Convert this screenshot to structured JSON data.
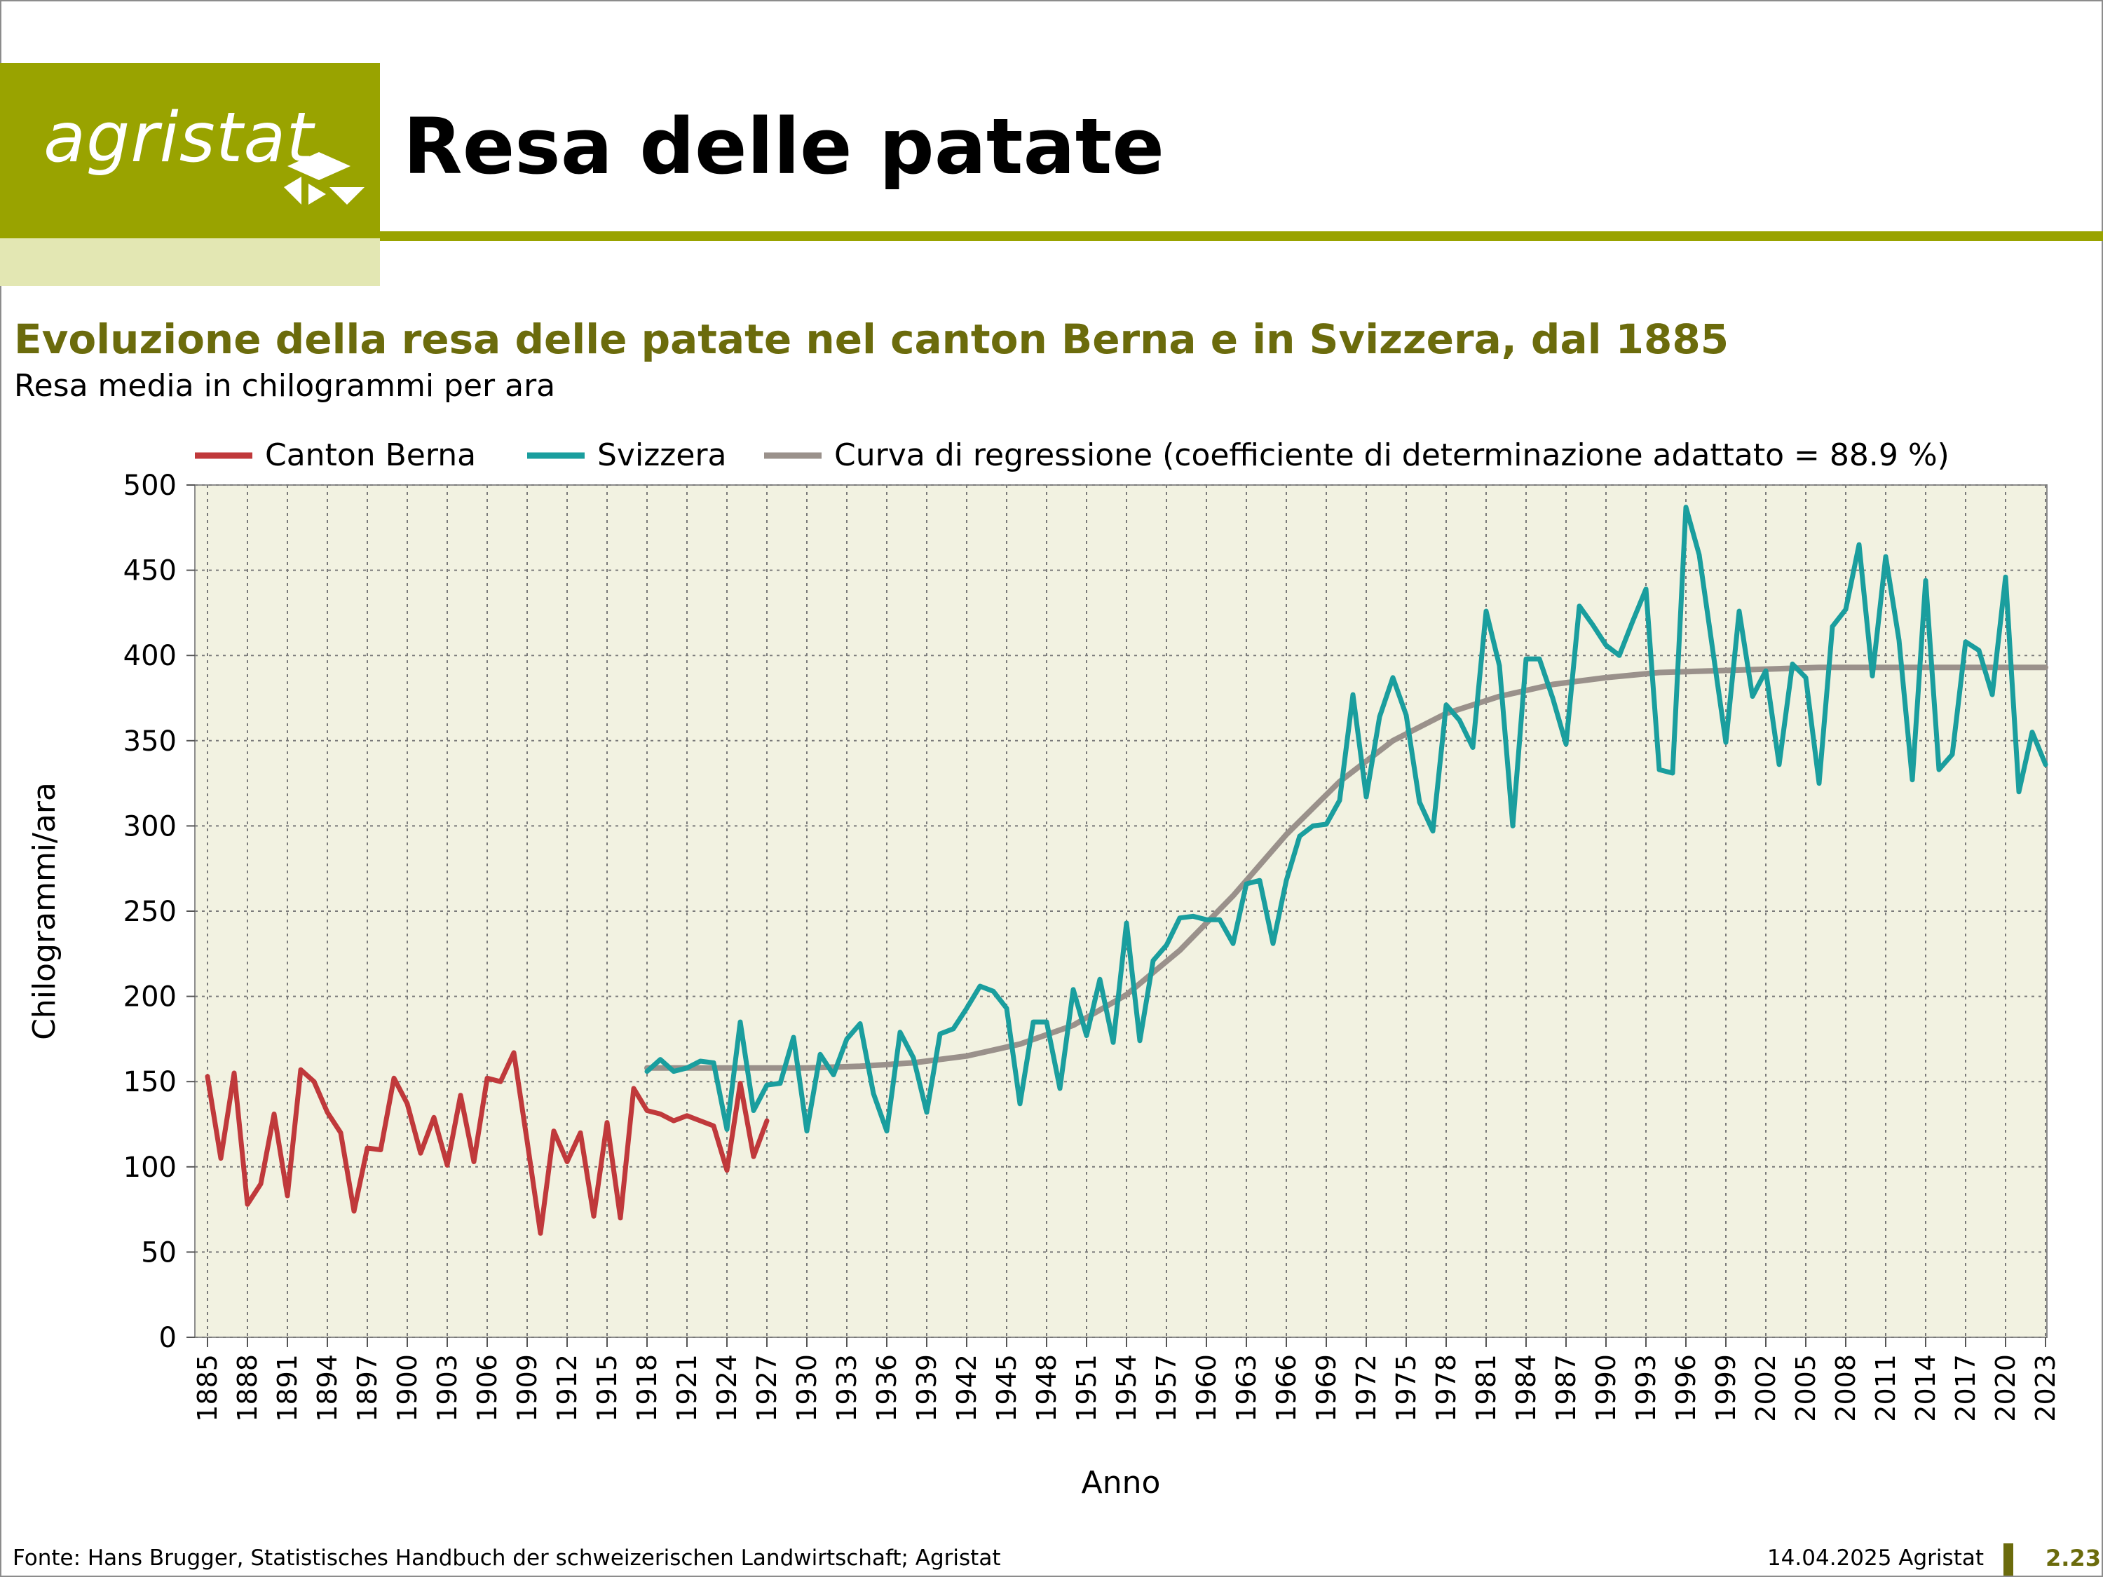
{
  "header": {
    "logo_text": "agristat",
    "title": "Resa delle patate"
  },
  "subtitle": "Evoluzione della resa delle patate nel canton Berna e in Svizzera, dal 1885",
  "subtitle2": "Resa media in chilogrammi per ara",
  "footer": {
    "source": "Fonte: Hans Brugger, Statistisches Handbuch der schweizerischen Landwirtschaft; Agristat",
    "date": "14.04.2025 Agristat",
    "page": "2.23"
  },
  "colors": {
    "accent": "#99a300",
    "accent_light": "#e3e7b3",
    "title_green": "#6b6b0c",
    "plot_bg": "#f2f2e1",
    "berna": "#c0393b",
    "svizzera": "#1a9e9e",
    "regression": "#9a918b"
  },
  "chart_data": {
    "type": "line",
    "xlabel": "Anno",
    "ylabel": "Chilogrammi/ara",
    "xlim": [
      1885,
      2023
    ],
    "ylim": [
      0,
      500
    ],
    "yticks": [
      0,
      50,
      100,
      150,
      200,
      250,
      300,
      350,
      400,
      450,
      500
    ],
    "xticks": [
      1885,
      1888,
      1891,
      1894,
      1897,
      1900,
      1903,
      1906,
      1909,
      1912,
      1915,
      1918,
      1921,
      1924,
      1927,
      1930,
      1933,
      1936,
      1939,
      1942,
      1945,
      1948,
      1951,
      1954,
      1957,
      1960,
      1963,
      1966,
      1969,
      1972,
      1975,
      1978,
      1981,
      1984,
      1987,
      1990,
      1993,
      1996,
      1999,
      2002,
      2005,
      2008,
      2011,
      2014,
      2017,
      2020,
      2023
    ],
    "grid": true,
    "legend": "top",
    "series": [
      {
        "name": "Canton Berna",
        "color": "#c0393b",
        "x": [
          1885,
          1886,
          1887,
          1888,
          1889,
          1890,
          1891,
          1892,
          1893,
          1894,
          1895,
          1896,
          1897,
          1898,
          1899,
          1900,
          1901,
          1902,
          1903,
          1904,
          1905,
          1906,
          1907,
          1908,
          1909,
          1910,
          1911,
          1912,
          1913,
          1914,
          1915,
          1916,
          1917,
          1918,
          1919,
          1920,
          1921,
          1922,
          1923,
          1924,
          1925,
          1926,
          1927
        ],
        "y": [
          153,
          105,
          155,
          78,
          90,
          131,
          83,
          157,
          150,
          132,
          120,
          74,
          111,
          110,
          152,
          137,
          108,
          129,
          101,
          142,
          103,
          152,
          150,
          167,
          115,
          61,
          121,
          103,
          120,
          71,
          126,
          70,
          146,
          133,
          131,
          127,
          130,
          127,
          124,
          98,
          149,
          106,
          127
        ]
      },
      {
        "name": "Svizzera",
        "color": "#1a9e9e",
        "x": [
          1918,
          1919,
          1920,
          1921,
          1922,
          1923,
          1924,
          1925,
          1926,
          1927,
          1928,
          1929,
          1930,
          1931,
          1932,
          1933,
          1934,
          1935,
          1936,
          1937,
          1938,
          1939,
          1940,
          1941,
          1942,
          1943,
          1944,
          1945,
          1946,
          1947,
          1948,
          1949,
          1950,
          1951,
          1952,
          1953,
          1954,
          1955,
          1956,
          1957,
          1958,
          1959,
          1960,
          1961,
          1962,
          1963,
          1964,
          1965,
          1966,
          1967,
          1968,
          1969,
          1970,
          1971,
          1972,
          1973,
          1974,
          1975,
          1976,
          1977,
          1978,
          1979,
          1980,
          1981,
          1982,
          1983,
          1984,
          1985,
          1986,
          1987,
          1988,
          1989,
          1990,
          1991,
          1992,
          1993,
          1994,
          1995,
          1996,
          1997,
          1998,
          1999,
          2000,
          2001,
          2002,
          2003,
          2004,
          2005,
          2006,
          2007,
          2008,
          2009,
          2010,
          2011,
          2012,
          2013,
          2014,
          2015,
          2016,
          2017,
          2018,
          2019,
          2020,
          2021,
          2022,
          2023
        ],
        "y": [
          156,
          163,
          156,
          158,
          162,
          161,
          122,
          185,
          133,
          148,
          149,
          176,
          121,
          166,
          154,
          175,
          184,
          143,
          121,
          179,
          164,
          132,
          178,
          181,
          193,
          206,
          203,
          193,
          137,
          185,
          185,
          146,
          204,
          177,
          210,
          173,
          243,
          174,
          221,
          230,
          246,
          247,
          245,
          245,
          231,
          266,
          268,
          231,
          268,
          294,
          300,
          301,
          315,
          377,
          317,
          364,
          387,
          365,
          314,
          297,
          371,
          362,
          346,
          426,
          394,
          300,
          398,
          398,
          375,
          348,
          429,
          418,
          406,
          400,
          420,
          439,
          333,
          331,
          487,
          459,
          404,
          349,
          426,
          376,
          391,
          336,
          395,
          387,
          325,
          417,
          427,
          465,
          388,
          458,
          409,
          327,
          444,
          333,
          342,
          408,
          403,
          377,
          446,
          320,
          355,
          336
        ]
      },
      {
        "name": "Curva di regressione (coefficiente di determinazione adattato = 88.9 %)",
        "color": "#9a918b",
        "x": [
          1918,
          1922,
          1926,
          1930,
          1934,
          1938,
          1942,
          1946,
          1950,
          1954,
          1958,
          1962,
          1966,
          1970,
          1974,
          1978,
          1982,
          1986,
          1990,
          1994,
          1998,
          2002,
          2006,
          2010,
          2014,
          2018,
          2023
        ],
        "y": [
          158,
          158,
          158,
          158,
          159,
          161,
          165,
          172,
          183,
          201,
          227,
          259,
          295,
          326,
          350,
          366,
          376,
          383,
          387,
          390,
          391,
          392,
          393,
          393,
          393,
          393,
          393
        ]
      }
    ]
  }
}
